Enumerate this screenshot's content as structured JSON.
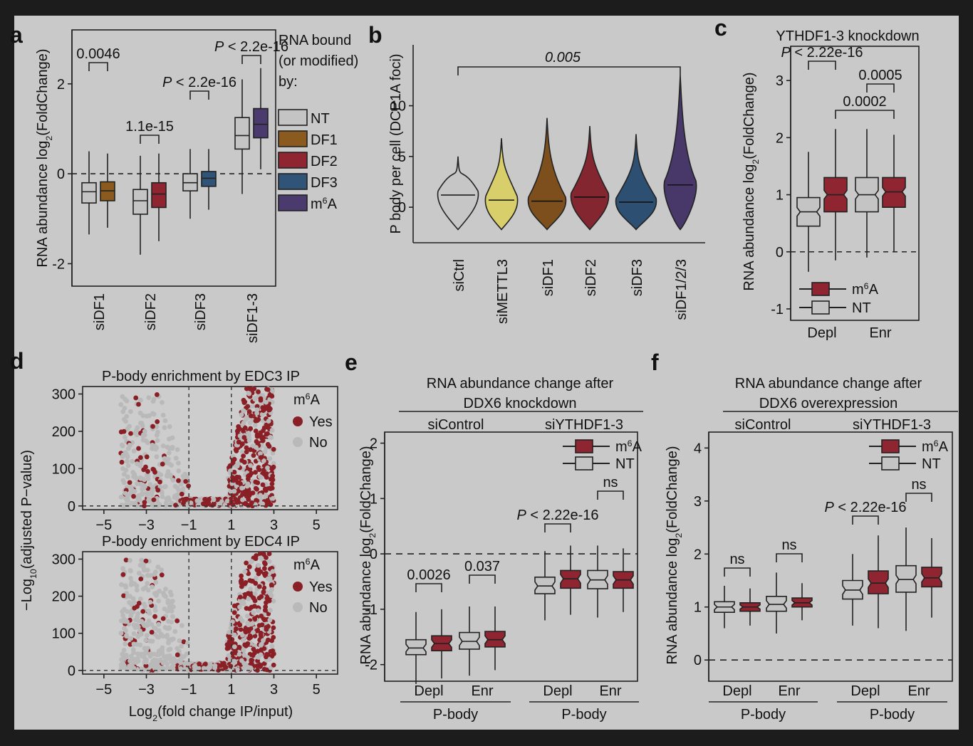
{
  "colors": {
    "frame": "#1c1c1c",
    "panel_bg": "#c9c9c9",
    "NT": "#c4c4c4",
    "DF1": "#8a5a1e",
    "DF2": "#8e2530",
    "DF3": "#2f5478",
    "m6A": "#4a3a6e",
    "siCtrl": "#c6c6c6",
    "siMETTL3": "#d8cf6a",
    "siDF1": "#7c4f1c",
    "siDF2": "#842630",
    "siDF3": "#2d4f72",
    "siDF123": "#48386a",
    "yes": "#8a1f26",
    "no": "#b9b9b9"
  },
  "panels": {
    "a": {
      "letter": "a"
    },
    "b": {
      "letter": "b"
    },
    "c": {
      "letter": "c"
    },
    "d": {
      "letter": "d"
    },
    "e": {
      "letter": "e"
    },
    "f": {
      "letter": "f"
    }
  },
  "chart_data": [
    {
      "panel": "a",
      "type": "box",
      "ylabel": "RNA abundance log2(FoldChange)",
      "ylim": [
        -2.5,
        3.2
      ],
      "yticks": [
        "-2",
        "0",
        "2"
      ],
      "reference_line": 0,
      "categories": [
        "siDF1",
        "siDF2",
        "siDF3",
        "siDF1-3"
      ],
      "legend_title": [
        "RNA bound",
        "(or modified)",
        "by:"
      ],
      "legend": [
        "NT",
        "DF1",
        "DF2",
        "DF3",
        "m6A"
      ],
      "groups": [
        {
          "category": "siDF1",
          "boxes": [
            {
              "series": "NT",
              "whisker_low": -1.35,
              "q1": -0.65,
              "median": -0.4,
              "q3": -0.2,
              "whisker_high": 0.5
            },
            {
              "series": "DF1",
              "whisker_low": -1.2,
              "q1": -0.6,
              "median": -0.38,
              "q3": -0.18,
              "whisker_high": 0.45
            }
          ]
        },
        {
          "category": "siDF2",
          "boxes": [
            {
              "series": "NT",
              "whisker_low": -1.8,
              "q1": -0.9,
              "median": -0.6,
              "q3": -0.35,
              "whisker_high": 0.4
            },
            {
              "series": "DF2",
              "whisker_low": -1.5,
              "q1": -0.75,
              "median": -0.45,
              "q3": -0.2,
              "whisker_high": 0.45
            }
          ]
        },
        {
          "category": "siDF3",
          "boxes": [
            {
              "series": "NT",
              "whisker_low": -1.0,
              "q1": -0.38,
              "median": -0.2,
              "q3": 0.0,
              "whisker_high": 0.55
            },
            {
              "series": "DF3",
              "whisker_low": -0.8,
              "q1": -0.28,
              "median": -0.1,
              "q3": 0.05,
              "whisker_high": 0.55
            }
          ]
        },
        {
          "category": "siDF1-3",
          "boxes": [
            {
              "series": "NT",
              "whisker_low": -0.45,
              "q1": 0.55,
              "median": 0.85,
              "q3": 1.25,
              "whisker_high": 2.1
            },
            {
              "series": "m6A",
              "whisker_low": 0.1,
              "q1": 0.8,
              "median": 1.1,
              "q3": 1.45,
              "whisker_high": 2.35
            }
          ]
        }
      ],
      "annotations": [
        "0.0046",
        "1.1e-15",
        "P < 2.2e-16",
        "P < 2.2e-16"
      ]
    },
    {
      "panel": "b",
      "type": "violin",
      "ylabel": "P body per cell (DCP1A foci)",
      "ylim": [
        -3.5,
        16
      ],
      "yticks": [
        "0",
        "5",
        "10"
      ],
      "categories": [
        "siCtrl",
        "siMETTL3",
        "siDF1",
        "siDF2",
        "siDF3",
        "siDF1/2/3"
      ],
      "medians": [
        1.2,
        0.7,
        0.6,
        1.0,
        0.5,
        2.2
      ],
      "max": [
        5,
        6.8,
        8.8,
        8,
        7.2,
        13
      ],
      "annotation": "0.005"
    },
    {
      "panel": "c",
      "type": "box",
      "title": "YTHDF1-3 knockdown",
      "ylabel": "RNA abundance log2(FoldChange)",
      "ylim": [
        -1.2,
        3.6
      ],
      "yticks": [
        "-1",
        "0",
        "1",
        "2",
        "3"
      ],
      "reference_line": 0,
      "categories": [
        "Depl",
        "Enr"
      ],
      "legend": [
        "m6A",
        "NT"
      ],
      "groups": [
        {
          "category": "Depl",
          "boxes": [
            {
              "series": "NT",
              "whisker_low": -0.35,
              "q1": 0.45,
              "median": 0.7,
              "q3": 0.95,
              "whisker_high": 1.75
            },
            {
              "series": "m6A",
              "whisker_low": -0.15,
              "q1": 0.7,
              "median": 1.0,
              "q3": 1.3,
              "whisker_high": 2.15
            }
          ]
        },
        {
          "category": "Enr",
          "boxes": [
            {
              "series": "NT",
              "whisker_low": -0.1,
              "q1": 0.7,
              "median": 1.0,
              "q3": 1.3,
              "whisker_high": 2.15
            },
            {
              "series": "m6A",
              "whisker_low": 0.0,
              "q1": 0.78,
              "median": 1.05,
              "q3": 1.3,
              "whisker_high": 2.05
            }
          ]
        }
      ],
      "annotations": [
        "P < 2.22e-16",
        "0.0005",
        "0.0002"
      ]
    },
    {
      "panel": "d",
      "type": "scatter",
      "titles": [
        "P-body enrichment by EDC3 IP",
        "P-body enrichment by EDC4 IP"
      ],
      "xlabel": "Log2(fold change IP/input)",
      "ylabel": "-Log10(adjusted P-value)",
      "xlim": [
        -6,
        6
      ],
      "ylim": [
        -10,
        320
      ],
      "xticks": [
        "-5",
        "-3",
        "-1",
        "1",
        "3",
        "5"
      ],
      "yticks": [
        "0",
        "100",
        "200",
        "300"
      ],
      "thresholds": [
        -1,
        1
      ],
      "legend_title": "m6A",
      "legend": [
        "Yes",
        "No"
      ]
    },
    {
      "panel": "e",
      "type": "box",
      "title": [
        "RNA abundance change after",
        "DDX6 knockdown"
      ],
      "conditions": [
        "siControl",
        "siYTHDF1-3"
      ],
      "ylabel": "RNA abundance log2(FoldChange)",
      "ylim": [
        -2.3,
        2.2
      ],
      "yticks": [
        "-2",
        "-1",
        "0",
        "1",
        "2"
      ],
      "reference_line": 0,
      "categories": [
        "Depl",
        "Enr",
        "Depl",
        "Enr"
      ],
      "xgroup_label": "P-body",
      "legend": [
        "m6A",
        "NT"
      ],
      "groups": [
        {
          "condition": "siControl",
          "category": "Depl",
          "boxes": [
            {
              "series": "NT",
              "whisker_low": -2.35,
              "q1": -1.82,
              "median": -1.7,
              "q3": -1.55,
              "whisker_high": -1.05
            },
            {
              "series": "m6A",
              "whisker_low": -2.25,
              "q1": -1.75,
              "median": -1.62,
              "q3": -1.48,
              "whisker_high": -1.0
            }
          ]
        },
        {
          "condition": "siControl",
          "category": "Enr",
          "boxes": [
            {
              "series": "NT",
              "whisker_low": -2.2,
              "q1": -1.72,
              "median": -1.58,
              "q3": -1.42,
              "whisker_high": -0.95
            },
            {
              "series": "m6A",
              "whisker_low": -2.1,
              "q1": -1.68,
              "median": -1.55,
              "q3": -1.4,
              "whisker_high": -0.95
            }
          ]
        },
        {
          "condition": "siYTHDF1-3",
          "category": "Depl",
          "boxes": [
            {
              "series": "NT",
              "whisker_low": -1.2,
              "q1": -0.72,
              "median": -0.58,
              "q3": -0.42,
              "whisker_high": 0.05
            },
            {
              "series": "m6A",
              "whisker_low": -1.1,
              "q1": -0.62,
              "median": -0.45,
              "q3": -0.3,
              "whisker_high": 0.15
            }
          ]
        },
        {
          "condition": "siYTHDF1-3",
          "category": "Enr",
          "boxes": [
            {
              "series": "NT",
              "whisker_low": -1.15,
              "q1": -0.63,
              "median": -0.47,
              "q3": -0.3,
              "whisker_high": 0.15
            },
            {
              "series": "m6A",
              "whisker_low": -1.05,
              "q1": -0.62,
              "median": -0.47,
              "q3": -0.32,
              "whisker_high": 0.1
            }
          ]
        }
      ],
      "annotations": [
        "0.0026",
        "0.037",
        "P < 2.22e-16",
        "ns"
      ]
    },
    {
      "panel": "f",
      "type": "box",
      "title": [
        "RNA abundance change after",
        "DDX6 overexpression"
      ],
      "conditions": [
        "siControl",
        "siYTHDF1-3"
      ],
      "ylabel": "RNA abundance log2(FoldChange)",
      "ylim": [
        -0.4,
        4.3
      ],
      "yticks": [
        "0",
        "1",
        "2",
        "3",
        "4"
      ],
      "reference_line": 0,
      "categories": [
        "Depl",
        "Enr",
        "Depl",
        "Enr"
      ],
      "xgroup_label": "P-body",
      "legend": [
        "m6A",
        "NT"
      ],
      "groups": [
        {
          "condition": "siControl",
          "category": "Depl",
          "boxes": [
            {
              "series": "NT",
              "whisker_low": 0.6,
              "q1": 0.9,
              "median": 1.0,
              "q3": 1.1,
              "whisker_high": 1.4
            },
            {
              "series": "m6A",
              "whisker_low": 0.65,
              "q1": 0.92,
              "median": 1.0,
              "q3": 1.08,
              "whisker_high": 1.35
            }
          ]
        },
        {
          "condition": "siControl",
          "category": "Enr",
          "boxes": [
            {
              "series": "NT",
              "whisker_low": 0.5,
              "q1": 0.92,
              "median": 1.05,
              "q3": 1.2,
              "whisker_high": 1.65
            },
            {
              "series": "m6A",
              "whisker_low": 0.75,
              "q1": 1.0,
              "median": 1.08,
              "q3": 1.17,
              "whisker_high": 1.45
            }
          ]
        },
        {
          "condition": "siYTHDF1-3",
          "category": "Depl",
          "boxes": [
            {
              "series": "NT",
              "whisker_low": 0.65,
              "q1": 1.15,
              "median": 1.32,
              "q3": 1.5,
              "whisker_high": 2.0
            },
            {
              "series": "m6A",
              "whisker_low": 0.6,
              "q1": 1.25,
              "median": 1.45,
              "q3": 1.68,
              "whisker_high": 2.35
            }
          ]
        },
        {
          "condition": "siYTHDF1-3",
          "category": "Enr",
          "boxes": [
            {
              "series": "NT",
              "whisker_low": 0.55,
              "q1": 1.28,
              "median": 1.52,
              "q3": 1.78,
              "whisker_high": 2.5
            },
            {
              "series": "m6A",
              "whisker_low": 0.8,
              "q1": 1.38,
              "median": 1.55,
              "q3": 1.75,
              "whisker_high": 2.3
            }
          ]
        }
      ],
      "annotations": [
        "ns",
        "ns",
        "P < 2.22e-16",
        "ns"
      ]
    }
  ]
}
